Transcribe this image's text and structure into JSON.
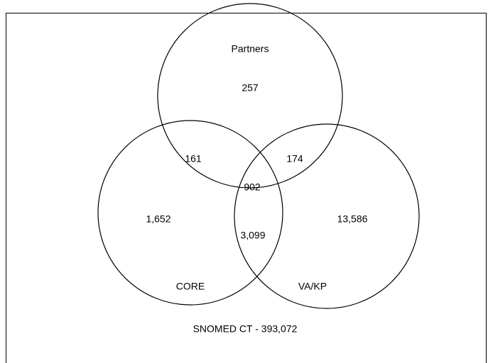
{
  "sets": [
    {
      "label": "Partners"
    },
    {
      "label": "CORE"
    },
    {
      "label": "VA/KP"
    }
  ],
  "regions": {
    "partners_only": "257",
    "core_partners": "161",
    "partners_vakp": "174",
    "all_three": "902",
    "core_only": "1,652",
    "vakp_only": "13,586",
    "core_vakp": "3,099"
  },
  "caption": "SNOMED CT - 393,072"
}
